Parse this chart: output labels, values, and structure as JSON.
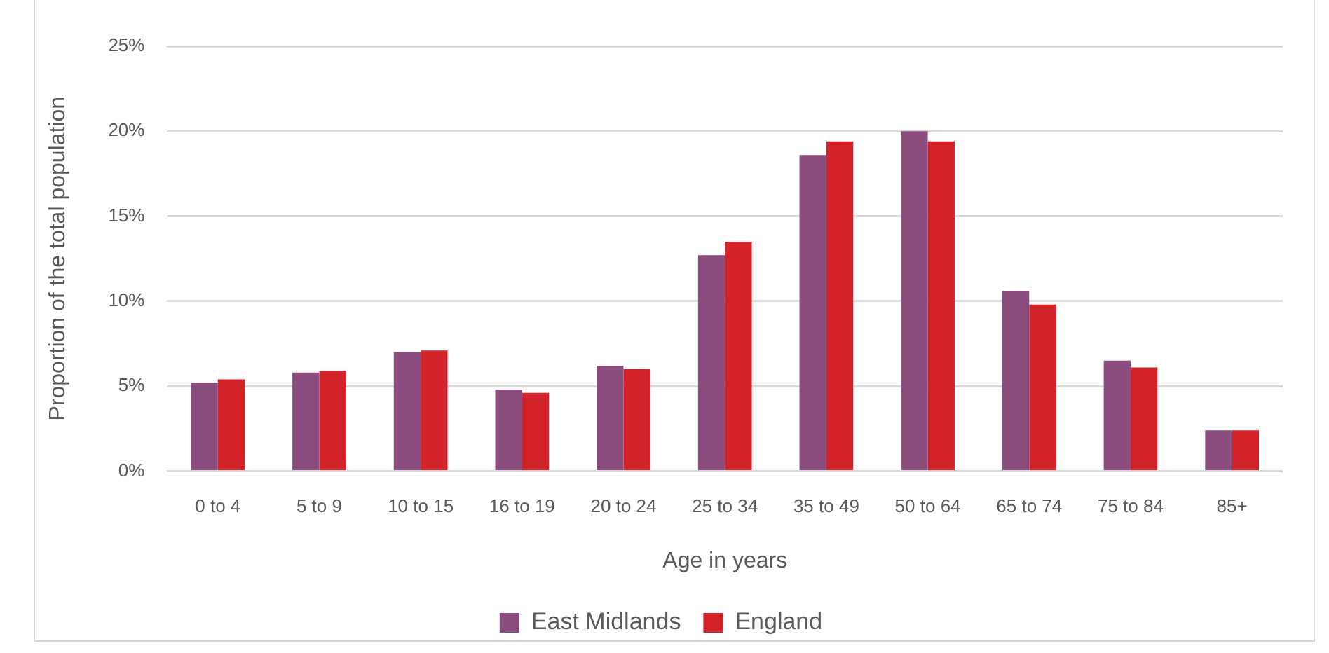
{
  "chart_data": {
    "type": "bar",
    "xlabel": "Age in years",
    "ylabel": "Proportion of the total population",
    "categories": [
      "0 to 4",
      "5 to 9",
      "10 to 15",
      "16 to 19",
      "20 to 24",
      "25 to 34",
      "35 to 49",
      "50 to 64",
      "65 to 74",
      "75 to 84",
      "85+"
    ],
    "series": [
      {
        "name": "East Midlands",
        "color": "#8b4c7e",
        "values": [
          5.2,
          5.8,
          7.0,
          4.8,
          6.2,
          12.7,
          18.6,
          20.0,
          10.6,
          6.5,
          2.4
        ]
      },
      {
        "name": "England",
        "color": "#d2232a",
        "values": [
          5.4,
          5.9,
          7.1,
          4.6,
          6.0,
          13.5,
          19.4,
          19.4,
          9.8,
          6.1,
          2.4
        ]
      }
    ],
    "ylim": [
      0,
      25
    ],
    "yticks": [
      {
        "value": 0,
        "label": "0%"
      },
      {
        "value": 5,
        "label": "5%"
      },
      {
        "value": 10,
        "label": "10%"
      },
      {
        "value": 15,
        "label": "15%"
      },
      {
        "value": 20,
        "label": "20%"
      },
      {
        "value": 25,
        "label": "25%"
      }
    ],
    "grid": "y",
    "legend": "bottom"
  }
}
